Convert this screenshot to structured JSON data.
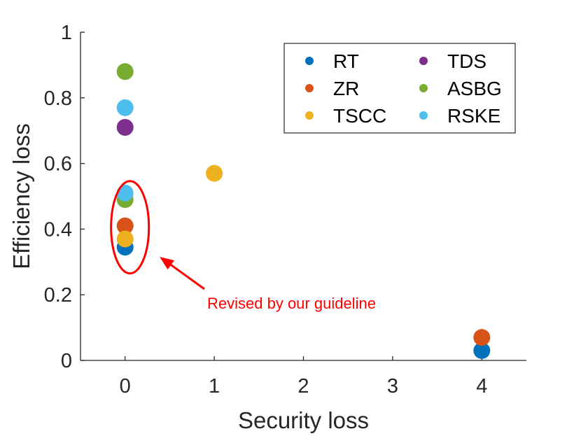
{
  "chart_data": {
    "type": "scatter",
    "xlabel": "Security loss",
    "ylabel": "Efficiency loss",
    "xlim": [
      -0.5,
      4.5
    ],
    "ylim": [
      0,
      1
    ],
    "xticks": [
      "0",
      "1",
      "2",
      "3",
      "4"
    ],
    "yticks": [
      "0",
      "0.2",
      "0.4",
      "0.6",
      "0.8",
      "1"
    ],
    "grid": false,
    "legend_position": "top-right",
    "series": [
      {
        "name": "RT",
        "color": "#0072BD",
        "points": [
          {
            "x": 0,
            "y": 0.345
          },
          {
            "x": 4,
            "y": 0.03
          }
        ]
      },
      {
        "name": "ZR",
        "color": "#D95319",
        "points": [
          {
            "x": 0,
            "y": 0.41
          },
          {
            "x": 4,
            "y": 0.07
          }
        ]
      },
      {
        "name": "TSCC",
        "color": "#EDB120",
        "points": [
          {
            "x": 0,
            "y": 0.37
          },
          {
            "x": 1,
            "y": 0.57
          }
        ]
      },
      {
        "name": "TDS",
        "color": "#7E2F8E",
        "points": [
          {
            "x": 0,
            "y": 0.71
          }
        ]
      },
      {
        "name": "ASBG",
        "color": "#77AC30",
        "points": [
          {
            "x": 0,
            "y": 0.49
          },
          {
            "x": 0,
            "y": 0.88
          }
        ]
      },
      {
        "name": "RSKE",
        "color": "#4DBEEE",
        "points": [
          {
            "x": 0,
            "y": 0.51
          },
          {
            "x": 0,
            "y": 0.77
          }
        ]
      }
    ],
    "annotation": {
      "text": "Revised by our guideline",
      "color": "#ff0000"
    }
  }
}
